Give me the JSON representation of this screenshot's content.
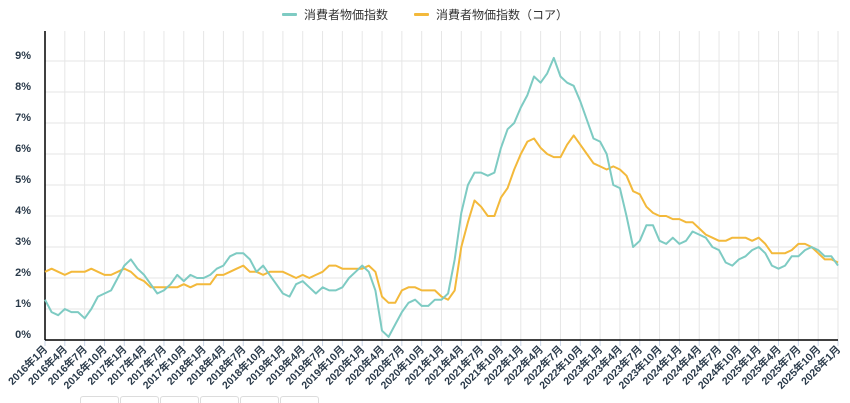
{
  "legend": {
    "items": [
      {
        "label": "消費者物価指数",
        "color": "#7ecbc3"
      },
      {
        "label": "消費者物価指数（コア）",
        "color": "#f3b93b"
      }
    ]
  },
  "chart_data": {
    "type": "line",
    "title": "",
    "xlabel": "",
    "ylabel": "",
    "ylim": [
      0,
      9.8
    ],
    "y_ticks": [
      "0%",
      "1%",
      "2%",
      "3%",
      "4%",
      "5%",
      "6%",
      "7%",
      "8%",
      "9%"
    ],
    "x_tick_labels": [
      "2016年1月",
      "2016年4月",
      "2016年7月",
      "2016年10月",
      "2017年1月",
      "2017年4月",
      "2017年7月",
      "2017年10月",
      "2018年1月",
      "2018年4月",
      "2018年7月",
      "2018年10月",
      "2019年1月",
      "2019年4月",
      "2019年7月",
      "2019年10月",
      "2020年1月",
      "2020年4月",
      "2020年7月",
      "2020年10月",
      "2021年1月",
      "2021年4月",
      "2021年7月",
      "2021年10月",
      "2022年1月",
      "2022年4月",
      "2022年7月",
      "2022年10月",
      "2023年1月",
      "2023年4月",
      "2023年7月",
      "2023年10月",
      "2024年1月",
      "2024年4月",
      "2024年7月",
      "2024年10月",
      "2025年1月",
      "2025年4月",
      "2025年7月",
      "2025年10月",
      "2026年1月"
    ],
    "x_start": "2016年1月",
    "x_end": "2026年1月",
    "frequency": "monthly",
    "grid": true,
    "legend_position": "top",
    "series": [
      {
        "name": "消費者物価指数",
        "color": "#7ecbc3",
        "values": [
          1.3,
          0.9,
          0.8,
          1.0,
          0.9,
          0.9,
          0.7,
          1.0,
          1.4,
          1.5,
          1.6,
          2.0,
          2.4,
          2.6,
          2.3,
          2.1,
          1.8,
          1.5,
          1.6,
          1.8,
          2.1,
          1.9,
          2.1,
          2.0,
          2.0,
          2.1,
          2.3,
          2.4,
          2.7,
          2.8,
          2.8,
          2.6,
          2.2,
          2.4,
          2.1,
          1.8,
          1.5,
          1.4,
          1.8,
          1.9,
          1.7,
          1.5,
          1.7,
          1.6,
          1.6,
          1.7,
          2.0,
          2.2,
          2.4,
          2.2,
          1.6,
          0.3,
          0.1,
          0.5,
          0.9,
          1.2,
          1.3,
          1.1,
          1.1,
          1.3,
          1.3,
          1.5,
          2.6,
          4.1,
          5.0,
          5.4,
          5.4,
          5.3,
          5.4,
          6.2,
          6.8,
          7.0,
          7.5,
          7.9,
          8.5,
          8.3,
          8.6,
          9.1,
          8.5,
          8.3,
          8.2,
          7.7,
          7.1,
          6.5,
          6.4,
          6.0,
          5.0,
          4.9,
          4.0,
          3.0,
          3.2,
          3.7,
          3.7,
          3.2,
          3.1,
          3.3,
          3.1,
          3.2,
          3.5,
          3.4,
          3.3,
          3.0,
          2.9,
          2.5,
          2.4,
          2.6,
          2.7,
          2.9,
          3.0,
          2.8,
          2.4,
          2.3,
          2.4,
          2.7,
          2.7,
          2.9,
          3.0,
          2.9,
          2.7,
          2.7,
          2.4
        ]
      },
      {
        "name": "消費者物価指数（コア）",
        "color": "#f3b93b",
        "values": [
          2.2,
          2.3,
          2.2,
          2.1,
          2.2,
          2.2,
          2.2,
          2.3,
          2.2,
          2.1,
          2.1,
          2.2,
          2.3,
          2.2,
          2.0,
          1.9,
          1.7,
          1.7,
          1.7,
          1.7,
          1.7,
          1.8,
          1.7,
          1.8,
          1.8,
          1.8,
          2.1,
          2.1,
          2.2,
          2.3,
          2.4,
          2.2,
          2.2,
          2.1,
          2.2,
          2.2,
          2.2,
          2.1,
          2.0,
          2.1,
          2.0,
          2.1,
          2.2,
          2.4,
          2.4,
          2.3,
          2.3,
          2.3,
          2.3,
          2.4,
          2.2,
          1.4,
          1.2,
          1.2,
          1.6,
          1.7,
          1.7,
          1.6,
          1.6,
          1.6,
          1.4,
          1.3,
          1.6,
          3.0,
          3.8,
          4.5,
          4.3,
          4.0,
          4.0,
          4.6,
          4.9,
          5.5,
          6.0,
          6.4,
          6.5,
          6.2,
          6.0,
          5.9,
          5.9,
          6.3,
          6.6,
          6.3,
          6.0,
          5.7,
          5.6,
          5.5,
          5.6,
          5.5,
          5.3,
          4.8,
          4.7,
          4.3,
          4.1,
          4.0,
          4.0,
          3.9,
          3.9,
          3.8,
          3.8,
          3.6,
          3.4,
          3.3,
          3.2,
          3.2,
          3.3,
          3.3,
          3.3,
          3.2,
          3.3,
          3.1,
          2.8,
          2.8,
          2.8,
          2.9,
          3.1,
          3.1,
          3.0,
          2.8,
          2.6,
          2.6,
          2.5
        ]
      }
    ]
  }
}
